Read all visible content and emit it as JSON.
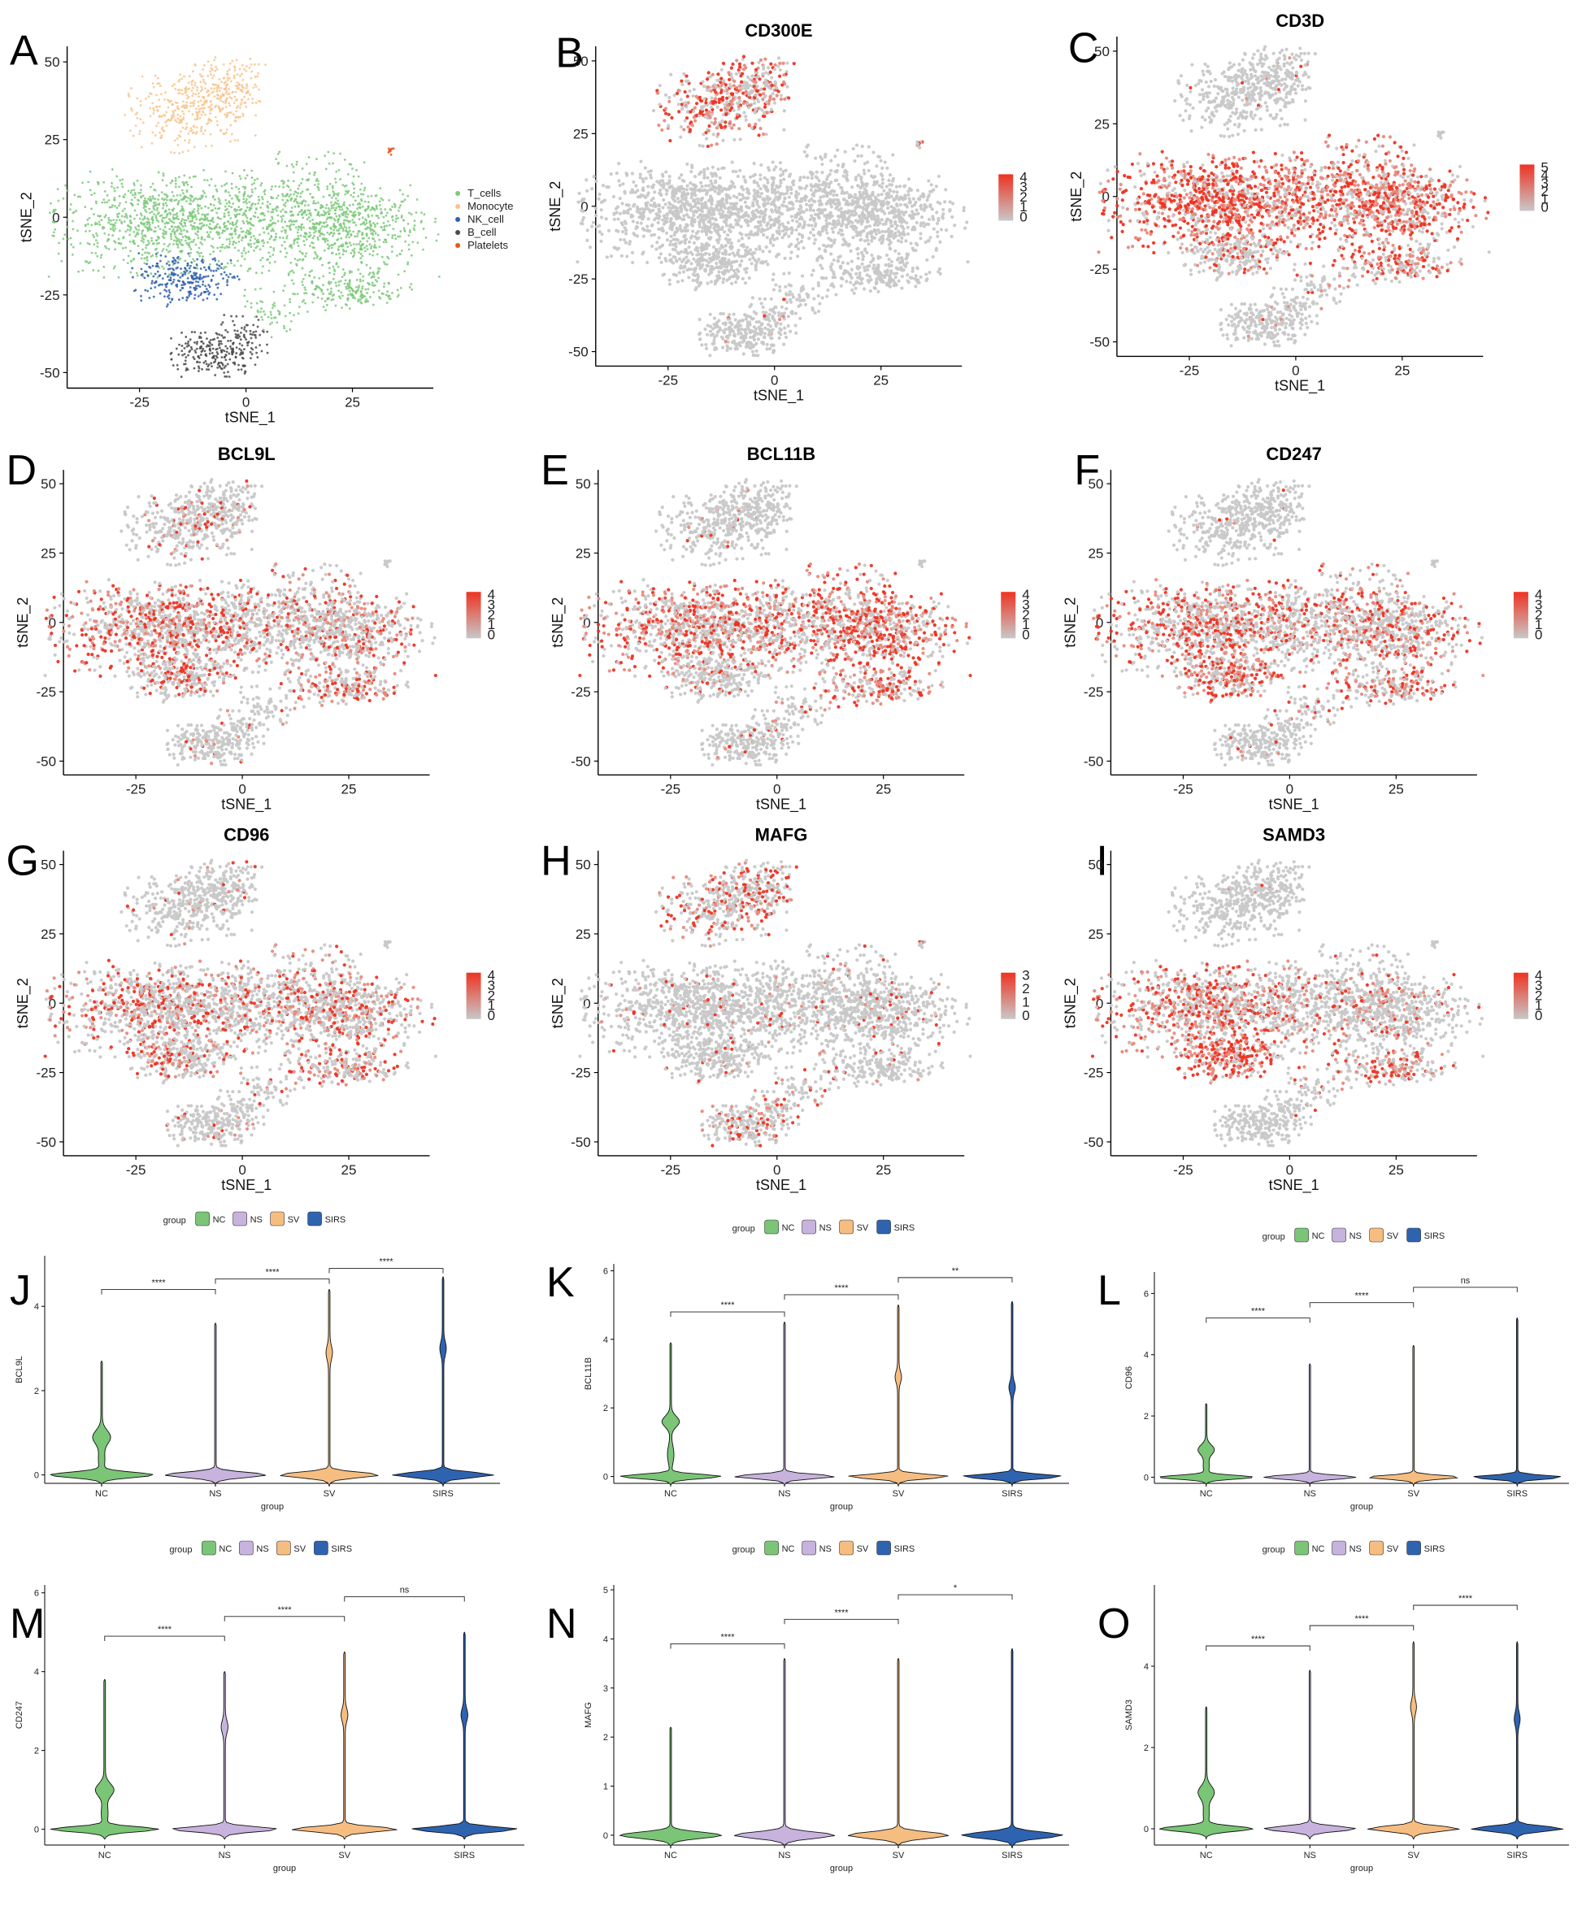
{
  "colors": {
    "T_cells": "#7dc97a",
    "Monocyte": "#f8c48d",
    "NK_cell": "#2f5fae",
    "B_cell": "#4a4a4a",
    "Platelets": "#e8541f",
    "grey": "#c8c8c8",
    "high": "#ee3322",
    "NC": "#7ac576",
    "NS": "#c7b3dd",
    "SV": "#f6bd81",
    "SIRS": "#2e63b0"
  },
  "chart_data": [
    {
      "panel": "A",
      "type": "scatter",
      "title": "",
      "xlabel": "tSNE_1",
      "ylabel": "tSNE_2",
      "xticks": [
        "-25",
        "0",
        "25"
      ],
      "yticks": [
        "50",
        "25",
        "0",
        "-25",
        "-50"
      ],
      "xlim": [
        -42,
        44
      ],
      "ylim": [
        -55,
        55
      ],
      "legend": [
        "T_cells",
        "Monocyte",
        "NK_cell",
        "B_cell",
        "Platelets"
      ],
      "legend_position": "right"
    },
    {
      "panel": "B",
      "type": "scatter",
      "title": "CD300E",
      "xlabel": "tSNE_1",
      "ylabel": "tSNE_2",
      "xticks": [
        "-25",
        "0",
        "25"
      ],
      "yticks": [
        "50",
        "25",
        "0",
        "-25",
        "-50"
      ],
      "xlim": [
        -42,
        44
      ],
      "ylim": [
        -55,
        55
      ],
      "colorbar": [
        "4",
        "3",
        "2",
        "1",
        "0"
      ],
      "high_cluster": "monocyte"
    },
    {
      "panel": "C",
      "type": "scatter",
      "title": "CD3D",
      "xlabel": "tSNE_1",
      "ylabel": "tSNE_2",
      "xticks": [
        "-25",
        "0",
        "25"
      ],
      "yticks": [
        "50",
        "25",
        "0",
        "-25",
        "-50"
      ],
      "xlim": [
        -42,
        44
      ],
      "ylim": [
        -55,
        55
      ],
      "colorbar": [
        "5",
        "4",
        "3",
        "2",
        "1",
        "0"
      ],
      "high_cluster": "tcell_strong"
    },
    {
      "panel": "D",
      "type": "scatter",
      "title": "BCL9L",
      "xlabel": "tSNE_1",
      "ylabel": "tSNE_2",
      "xticks": [
        "-25",
        "0",
        "25"
      ],
      "yticks": [
        "50",
        "25",
        "0",
        "-25",
        "-50"
      ],
      "xlim": [
        -42,
        44
      ],
      "ylim": [
        -55,
        55
      ],
      "colorbar": [
        "4",
        "3",
        "2",
        "1",
        "0"
      ],
      "high_cluster": "tcell_left"
    },
    {
      "panel": "E",
      "type": "scatter",
      "title": "BCL11B",
      "xlabel": "tSNE_1",
      "ylabel": "tSNE_2",
      "xticks": [
        "-25",
        "0",
        "25"
      ],
      "yticks": [
        "50",
        "25",
        "0",
        "-25",
        "-50"
      ],
      "xlim": [
        -42,
        44
      ],
      "ylim": [
        -55,
        55
      ],
      "colorbar": [
        "4",
        "3",
        "2",
        "1",
        "0"
      ],
      "high_cluster": "tcell_right"
    },
    {
      "panel": "F",
      "type": "scatter",
      "title": "CD247",
      "xlabel": "tSNE_1",
      "ylabel": "tSNE_2",
      "xticks": [
        "-25",
        "0",
        "25"
      ],
      "yticks": [
        "50",
        "25",
        "0",
        "-25",
        "-50"
      ],
      "xlim": [
        -42,
        44
      ],
      "ylim": [
        -55,
        55
      ],
      "colorbar": [
        "4",
        "3",
        "2",
        "1",
        "0"
      ],
      "high_cluster": "tcell_nk"
    },
    {
      "panel": "G",
      "type": "scatter",
      "title": "CD96",
      "xlabel": "tSNE_1",
      "ylabel": "tSNE_2",
      "xticks": [
        "-25",
        "0",
        "25"
      ],
      "yticks": [
        "50",
        "25",
        "0",
        "-25",
        "-50"
      ],
      "xlim": [
        -42,
        44
      ],
      "ylim": [
        -55,
        55
      ],
      "colorbar": [
        "4",
        "3",
        "2",
        "1",
        "0"
      ],
      "high_cluster": "tcell_mild"
    },
    {
      "panel": "H",
      "type": "scatter",
      "title": "MAFG",
      "xlabel": "tSNE_1",
      "ylabel": "tSNE_2",
      "xticks": [
        "-25",
        "0",
        "25"
      ],
      "yticks": [
        "50",
        "25",
        "0",
        "-25",
        "-50"
      ],
      "xlim": [
        -42,
        44
      ],
      "ylim": [
        -55,
        55
      ],
      "colorbar": [
        "3",
        "2",
        "1",
        "0"
      ],
      "high_cluster": "monocyte_mild"
    },
    {
      "panel": "I",
      "type": "scatter",
      "title": "SAMD3",
      "xlabel": "tSNE_1",
      "ylabel": "tSNE_2",
      "xticks": [
        "-25",
        "0",
        "25"
      ],
      "yticks": [
        "50",
        "25",
        "0",
        "-25",
        "-50"
      ],
      "xlim": [
        -42,
        44
      ],
      "ylim": [
        -55,
        55
      ],
      "colorbar": [
        "4",
        "3",
        "2",
        "1",
        "0"
      ],
      "high_cluster": "nk_left"
    },
    {
      "panel": "J",
      "type": "violin",
      "ylabel": "BCL9L",
      "xlabel": "group",
      "legend_title": "group",
      "categories": [
        "NC",
        "NS",
        "SV",
        "SIRS"
      ],
      "ylim": [
        -0.2,
        5.2
      ],
      "yticks": [
        0,
        2,
        4
      ],
      "max": [
        2.7,
        3.6,
        4.4,
        4.7
      ],
      "upper_mode": [
        0.9,
        null,
        2.9,
        3.0
      ],
      "comparisons": [
        {
          "from": "NC",
          "to": "NS",
          "label": "****",
          "y": 4.4
        },
        {
          "from": "NS",
          "to": "SV",
          "label": "****",
          "y": 4.65
        },
        {
          "from": "SV",
          "to": "SIRS",
          "label": "****",
          "y": 4.9
        }
      ]
    },
    {
      "panel": "K",
      "type": "violin",
      "ylabel": "BCL11B",
      "xlabel": "group",
      "legend_title": "group",
      "categories": [
        "NC",
        "NS",
        "SV",
        "SIRS"
      ],
      "ylim": [
        -0.2,
        6.2
      ],
      "yticks": [
        0,
        2,
        4,
        6
      ],
      "max": [
        3.9,
        4.5,
        5.0,
        5.1
      ],
      "upper_mode": [
        1.6,
        null,
        2.9,
        2.6
      ],
      "comparisons": [
        {
          "from": "NC",
          "to": "NS",
          "label": "****",
          "y": 4.8
        },
        {
          "from": "NS",
          "to": "SV",
          "label": "****",
          "y": 5.3
        },
        {
          "from": "SV",
          "to": "SIRS",
          "label": "**",
          "y": 5.8
        }
      ]
    },
    {
      "panel": "L",
      "type": "violin",
      "ylabel": "CD96",
      "xlabel": "group",
      "legend_title": "group",
      "categories": [
        "NC",
        "NS",
        "SV",
        "SIRS"
      ],
      "ylim": [
        -0.2,
        6.7
      ],
      "yticks": [
        0,
        2,
        4,
        6
      ],
      "max": [
        2.4,
        3.7,
        4.3,
        5.2
      ],
      "upper_mode": [
        0.9,
        null,
        null,
        null
      ],
      "comparisons": [
        {
          "from": "NC",
          "to": "NS",
          "label": "****",
          "y": 5.2
        },
        {
          "from": "NS",
          "to": "SV",
          "label": "****",
          "y": 5.7
        },
        {
          "from": "SV",
          "to": "SIRS",
          "label": "ns",
          "y": 6.2
        }
      ]
    },
    {
      "panel": "M",
      "type": "violin",
      "ylabel": "CD247",
      "xlabel": "group",
      "legend_title": "group",
      "categories": [
        "NC",
        "NS",
        "SV",
        "SIRS"
      ],
      "ylim": [
        -0.4,
        6.2
      ],
      "yticks": [
        0,
        2,
        4,
        6
      ],
      "max": [
        3.8,
        4.0,
        4.5,
        5.0
      ],
      "upper_mode": [
        1.0,
        2.6,
        2.9,
        2.9
      ],
      "comparisons": [
        {
          "from": "NC",
          "to": "NS",
          "label": "****",
          "y": 4.9
        },
        {
          "from": "NS",
          "to": "SV",
          "label": "****",
          "y": 5.4
        },
        {
          "from": "SV",
          "to": "SIRS",
          "label": "ns",
          "y": 5.9
        }
      ]
    },
    {
      "panel": "N",
      "type": "violin",
      "ylabel": "MAFG",
      "xlabel": "group",
      "legend_title": "group",
      "categories": [
        "NC",
        "NS",
        "SV",
        "SIRS"
      ],
      "ylim": [
        -0.2,
        5.1
      ],
      "yticks": [
        0,
        1,
        2,
        3,
        4,
        5
      ],
      "max": [
        2.2,
        3.6,
        3.6,
        3.8
      ],
      "upper_mode": [
        null,
        null,
        null,
        null
      ],
      "comparisons": [
        {
          "from": "NC",
          "to": "NS",
          "label": "****",
          "y": 3.9
        },
        {
          "from": "NS",
          "to": "SV",
          "label": "****",
          "y": 4.4
        },
        {
          "from": "SV",
          "to": "SIRS",
          "label": "*",
          "y": 4.9
        }
      ]
    },
    {
      "panel": "O",
      "type": "violin",
      "ylabel": "SAMD3",
      "xlabel": "group",
      "legend_title": "group",
      "categories": [
        "NC",
        "NS",
        "SV",
        "SIRS"
      ],
      "ylim": [
        -0.4,
        6.0
      ],
      "yticks": [
        0,
        2,
        4
      ],
      "max": [
        3.0,
        3.9,
        4.6,
        4.6
      ],
      "upper_mode": [
        0.9,
        null,
        3.0,
        2.7
      ],
      "comparisons": [
        {
          "from": "NC",
          "to": "NS",
          "label": "****",
          "y": 4.5
        },
        {
          "from": "NS",
          "to": "SV",
          "label": "****",
          "y": 5.0
        },
        {
          "from": "SV",
          "to": "SIRS",
          "label": "****",
          "y": 5.5
        }
      ]
    }
  ]
}
